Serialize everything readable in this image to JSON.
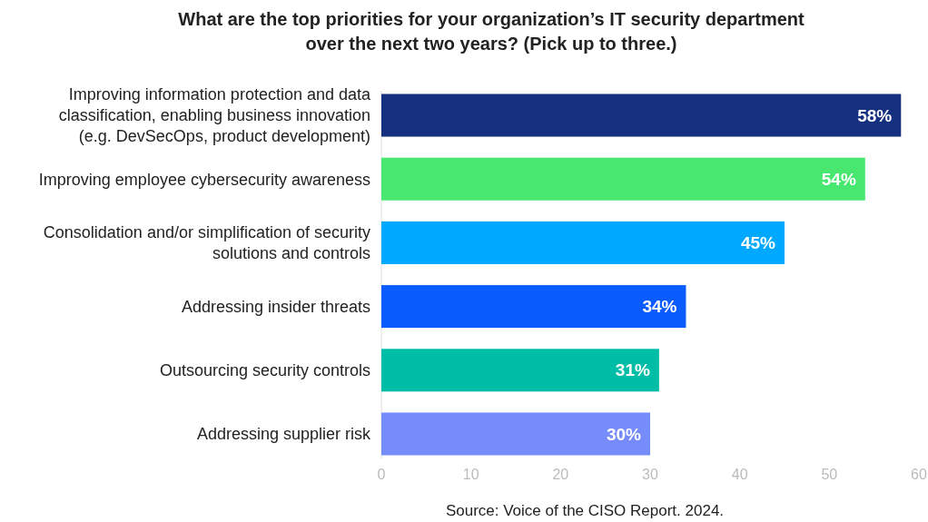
{
  "chart_data": {
    "type": "bar",
    "orientation": "horizontal",
    "title": "What are the top priorities for your organization’s IT security department over the next two years? (Pick up to three.)",
    "categories": [
      "Improving information protection and data classification, enabling business innovation (e.g. DevSecOps, product development)",
      "Improving employee cybersecurity awareness",
      "Consolidation and/or simplification of security solutions and controls",
      "Addressing insider threats",
      "Outsourcing security controls",
      "Addressing supplier risk"
    ],
    "values": [
      58,
      54,
      45,
      34,
      31,
      30
    ],
    "colors": [
      "#14307f",
      "#47e770",
      "#00a9ff",
      "#0b5cff",
      "#00bda8",
      "#768cfa"
    ],
    "value_labels": [
      "58%",
      "54%",
      "45%",
      "34%",
      "31%",
      "30%"
    ],
    "xlim": [
      0,
      60
    ],
    "xticks": [
      0,
      10,
      20,
      30,
      40,
      50,
      60
    ],
    "grid": false,
    "annotations": [
      "Source: Voice of the CISO Report. 2024."
    ]
  }
}
